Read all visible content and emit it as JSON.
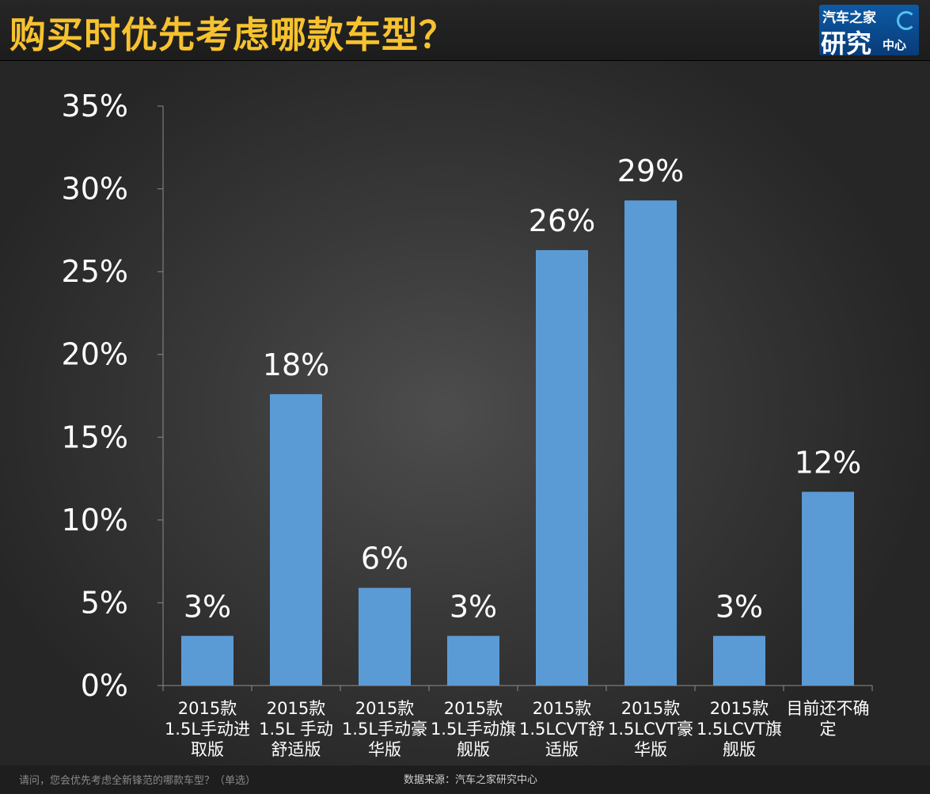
{
  "header": {
    "title": "购买时优先考虑哪款车型？",
    "logo": {
      "line1": "汽车之家",
      "line2": "研究",
      "line3": "中心"
    }
  },
  "chart_data": {
    "type": "bar",
    "title": "购买时优先考虑哪款车型？",
    "categories": [
      [
        "2015款",
        "1.5L手动进",
        "取版"
      ],
      [
        "2015款",
        "1.5L 手动",
        "舒适版"
      ],
      [
        "2015款",
        "1.5L手动豪",
        "华版"
      ],
      [
        "2015款",
        "1.5L手动旗",
        "舰版"
      ],
      [
        "2015款",
        "1.5LCVT舒",
        "适版"
      ],
      [
        "2015款",
        "1.5LCVT豪",
        "华版"
      ],
      [
        "2015款",
        "1.5LCVT旗",
        "舰版"
      ],
      [
        "目前还不确",
        "定"
      ]
    ],
    "values": [
      3,
      17.6,
      5.9,
      3,
      26.3,
      29.3,
      3,
      11.7
    ],
    "data_labels": [
      "3%",
      "18%",
      "6%",
      "3%",
      "26%",
      "29%",
      "3%",
      "12%"
    ],
    "y_ticks": [
      "0%",
      "5%",
      "10%",
      "15%",
      "20%",
      "25%",
      "30%",
      "35%"
    ],
    "ylim": [
      0,
      35
    ],
    "ytick_step": 5,
    "bar_color": "#5b9bd5",
    "grid": false,
    "legend": "none"
  },
  "footer": {
    "question": "请问，您会优先考虑全新锋范的哪款车型？（单选）",
    "source": "数据来源：汽车之家研究中心"
  }
}
